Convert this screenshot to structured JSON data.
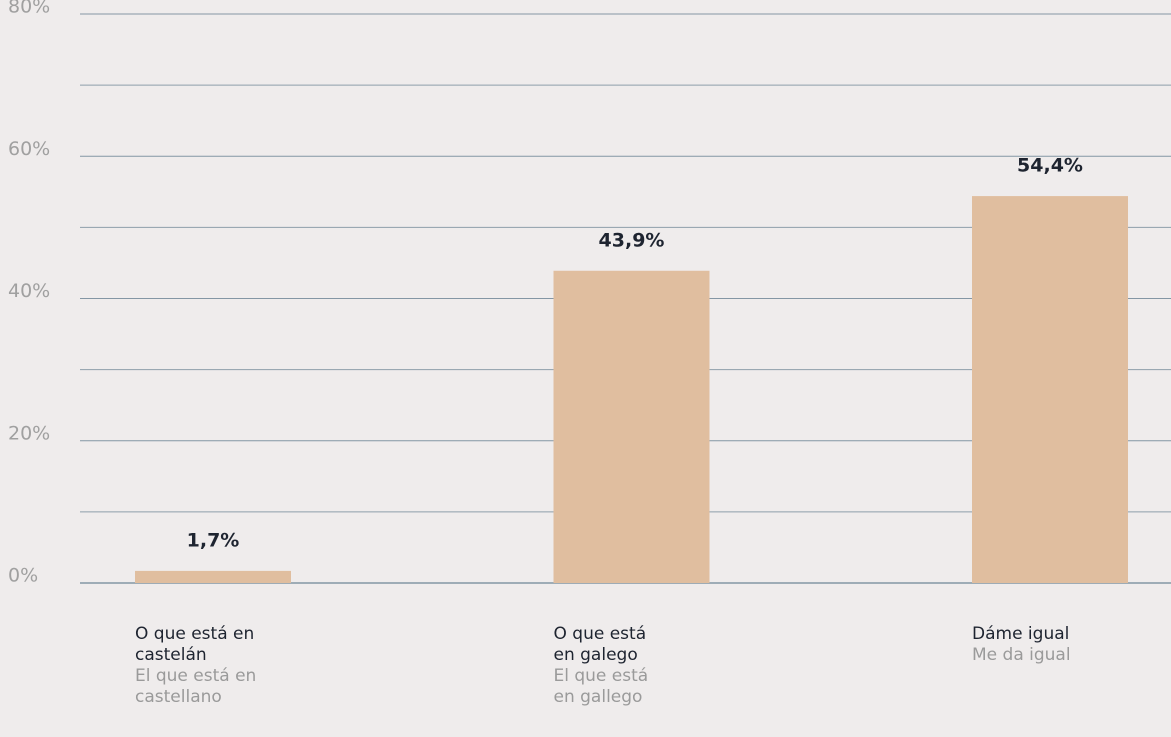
{
  "chart_data": {
    "type": "bar",
    "categories": [
      "O que está en castelán",
      "O que está en galego",
      "Dáme igual"
    ],
    "category_translations": [
      "El que está en castellano",
      "El que está en gallego",
      "Me da igual"
    ],
    "values": [
      1.7,
      43.9,
      54.4
    ],
    "value_labels": [
      "1,7%",
      "43,9%",
      "54,4%"
    ],
    "color": "#e0be9f",
    "ylim": [
      0,
      80
    ],
    "yticks": [
      {
        "value": 0,
        "label": "0%"
      },
      {
        "value": 20,
        "label": "20%"
      },
      {
        "value": 40,
        "label": "40%"
      },
      {
        "value": 60,
        "label": "60%"
      },
      {
        "value": 80,
        "label": "80%"
      }
    ],
    "minor_yticks": [
      10,
      30,
      50,
      70
    ],
    "grid": true
  }
}
